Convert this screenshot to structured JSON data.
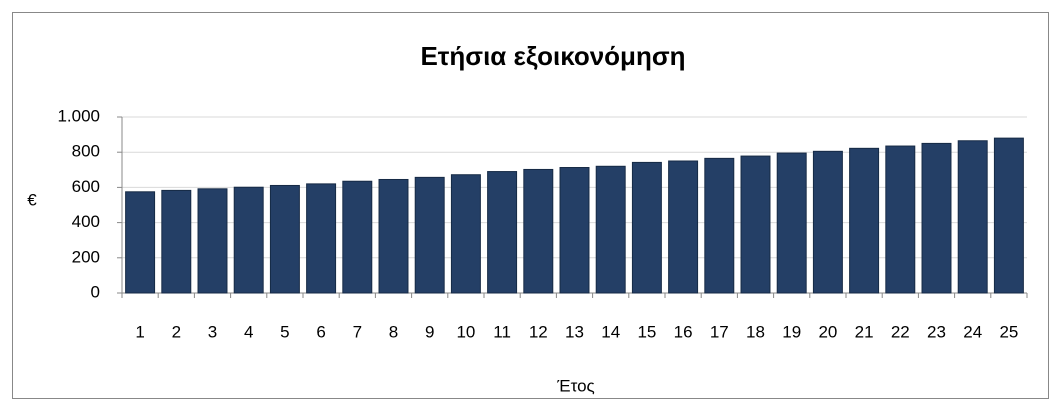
{
  "chart_data": {
    "type": "bar",
    "title": "Ετήσια εξοικονόμηση",
    "x_label": "Έτος",
    "y_label": "€",
    "categories": [
      "1",
      "2",
      "3",
      "4",
      "5",
      "6",
      "7",
      "8",
      "9",
      "10",
      "11",
      "12",
      "13",
      "14",
      "15",
      "16",
      "17",
      "18",
      "19",
      "20",
      "21",
      "22",
      "23",
      "24",
      "25"
    ],
    "values": [
      575,
      583,
      592,
      601,
      611,
      620,
      635,
      645,
      657,
      672,
      690,
      702,
      713,
      720,
      742,
      750,
      765,
      778,
      795,
      805,
      822,
      835,
      850,
      865,
      880
    ],
    "color": "#243f66",
    "ylim": [
      0,
      1000
    ],
    "yticks": [
      0,
      200,
      400,
      600,
      800,
      {
        "value": 1000,
        "label": "1.000"
      }
    ],
    "grid": true
  }
}
